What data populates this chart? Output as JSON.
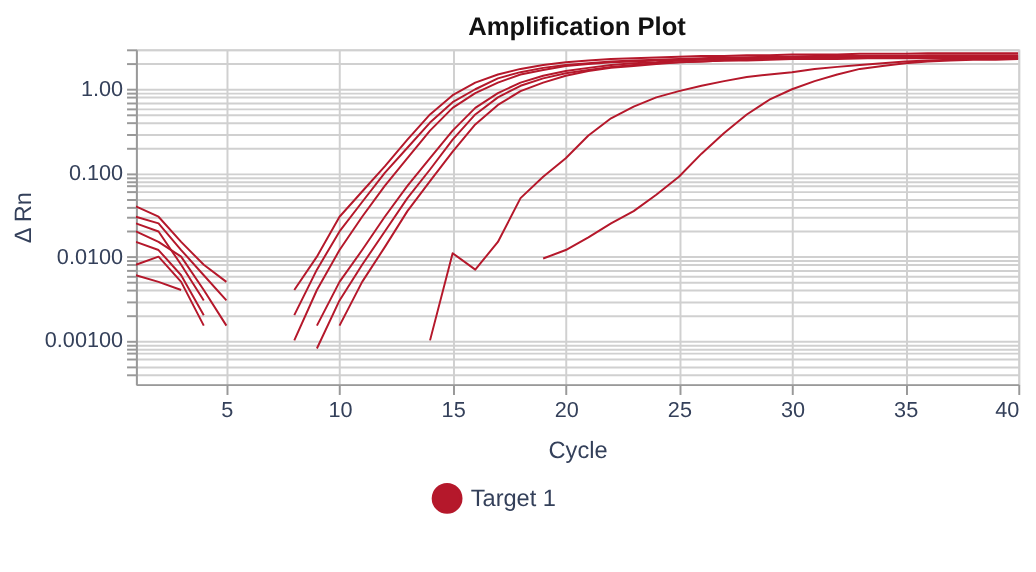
{
  "chart_data": {
    "type": "line",
    "title": "Amplification Plot",
    "xlabel": "Cycle",
    "ylabel": "Δ Rn",
    "log": "y",
    "grid": true,
    "legend": "bottom",
    "line_style": "solid",
    "xlim": [
      1,
      40
    ],
    "xticks": [
      5,
      10,
      15,
      20,
      25,
      30,
      35,
      40
    ],
    "ylim": [
      0.0003,
      3
    ],
    "yticks": [
      {
        "value": 0.0004,
        "label": null
      },
      {
        "value": 0.0005,
        "label": null
      },
      {
        "value": 0.0006,
        "label": null
      },
      {
        "value": 0.0007,
        "label": null
      },
      {
        "value": 0.0008,
        "label": null
      },
      {
        "value": 0.0009,
        "label": null
      },
      {
        "value": 0.001,
        "label": "0.00100"
      },
      {
        "value": 0.002,
        "label": null
      },
      {
        "value": 0.003,
        "label": null
      },
      {
        "value": 0.004,
        "label": null
      },
      {
        "value": 0.005,
        "label": null
      },
      {
        "value": 0.006,
        "label": null
      },
      {
        "value": 0.007,
        "label": null
      },
      {
        "value": 0.008,
        "label": null
      },
      {
        "value": 0.009,
        "label": null
      },
      {
        "value": 0.01,
        "label": "0.0100"
      },
      {
        "value": 0.02,
        "label": null
      },
      {
        "value": 0.03,
        "label": null
      },
      {
        "value": 0.04,
        "label": null
      },
      {
        "value": 0.05,
        "label": null
      },
      {
        "value": 0.06,
        "label": null
      },
      {
        "value": 0.07,
        "label": null
      },
      {
        "value": 0.08,
        "label": null
      },
      {
        "value": 0.09,
        "label": null
      },
      {
        "value": 0.1,
        "label": "0.100"
      },
      {
        "value": 0.2,
        "label": null
      },
      {
        "value": 0.3,
        "label": null
      },
      {
        "value": 0.4,
        "label": null
      },
      {
        "value": 0.5,
        "label": null
      },
      {
        "value": 0.6,
        "label": null
      },
      {
        "value": 0.7,
        "label": null
      },
      {
        "value": 0.8,
        "label": null
      },
      {
        "value": 0.9,
        "label": null
      },
      {
        "value": 1,
        "label": "1.00"
      },
      {
        "value": 2,
        "label": null
      },
      {
        "value": 3,
        "label": null
      }
    ],
    "series": [
      {
        "name": "Target 1",
        "color": "#b5182b",
        "x": [
          8,
          9,
          10,
          11,
          12,
          13,
          14,
          15,
          16,
          17,
          18,
          19,
          20,
          21,
          22,
          23,
          24,
          25,
          26,
          27,
          28,
          29,
          30,
          31,
          32,
          33,
          34,
          35,
          36,
          37,
          38,
          39,
          40
        ],
        "values": [
          0.004,
          0.01,
          0.03,
          0.06,
          0.12,
          0.25,
          0.5,
          0.85,
          1.2,
          1.5,
          1.75,
          1.95,
          2.1,
          2.2,
          2.3,
          2.35,
          2.4,
          2.45,
          2.5,
          2.5,
          2.55,
          2.55,
          2.6,
          2.6,
          2.6,
          2.65,
          2.65,
          2.65,
          2.7,
          2.7,
          2.7,
          2.7,
          2.7
        ]
      },
      {
        "color": "#b5182b",
        "x": [
          8,
          9,
          10,
          11,
          12,
          13,
          14,
          15,
          16,
          17,
          18,
          19,
          20,
          21,
          22,
          23,
          24,
          25,
          26,
          27,
          28,
          29,
          30,
          31,
          32,
          33,
          34,
          35,
          36,
          37,
          38,
          39,
          40
        ],
        "values": [
          0.002,
          0.007,
          0.02,
          0.045,
          0.1,
          0.2,
          0.4,
          0.7,
          1.0,
          1.35,
          1.6,
          1.8,
          1.95,
          2.05,
          2.15,
          2.2,
          2.25,
          2.3,
          2.35,
          2.4,
          2.4,
          2.45,
          2.45,
          2.5,
          2.5,
          2.5,
          2.5,
          2.5,
          2.55,
          2.55,
          2.55,
          2.55,
          2.55
        ]
      },
      {
        "color": "#b5182b",
        "x": [
          8,
          9,
          10,
          11,
          12,
          13,
          14,
          15,
          16,
          17,
          18,
          19,
          20,
          21,
          22,
          23,
          24,
          25,
          26,
          27,
          28,
          29,
          30,
          31,
          32,
          33,
          34,
          35,
          36,
          37,
          38,
          39,
          40
        ],
        "values": [
          0.001,
          0.004,
          0.012,
          0.03,
          0.07,
          0.15,
          0.32,
          0.6,
          0.9,
          1.2,
          1.5,
          1.7,
          1.9,
          2.0,
          2.1,
          2.15,
          2.2,
          2.25,
          2.3,
          2.35,
          2.4,
          2.4,
          2.45,
          2.45,
          2.5,
          2.5,
          2.5,
          2.5,
          2.5,
          2.5,
          2.5,
          2.5,
          2.5
        ]
      },
      {
        "color": "#b5182b",
        "x": [
          9,
          10,
          11,
          12,
          13,
          14,
          15,
          16,
          17,
          18,
          19,
          20,
          21,
          22,
          23,
          24,
          25,
          26,
          27,
          28,
          29,
          30,
          31,
          32,
          33,
          34,
          35,
          36,
          37,
          38,
          39,
          40
        ],
        "values": [
          0.0015,
          0.005,
          0.012,
          0.03,
          0.07,
          0.15,
          0.32,
          0.6,
          0.9,
          1.2,
          1.45,
          1.65,
          1.8,
          1.95,
          2.05,
          2.1,
          2.2,
          2.25,
          2.3,
          2.3,
          2.35,
          2.35,
          2.4,
          2.4,
          2.4,
          2.45,
          2.45,
          2.45,
          2.45,
          2.45,
          2.45,
          2.45
        ]
      },
      {
        "color": "#b5182b",
        "x": [
          9,
          10,
          11,
          12,
          13,
          14,
          15,
          16,
          17,
          18,
          19,
          20,
          21,
          22,
          23,
          24,
          25,
          26,
          27,
          28,
          29,
          30,
          31,
          32,
          33,
          34,
          35,
          36,
          37,
          38,
          39,
          40
        ],
        "values": [
          0.0008,
          0.003,
          0.008,
          0.02,
          0.05,
          0.11,
          0.25,
          0.5,
          0.8,
          1.1,
          1.35,
          1.55,
          1.7,
          1.85,
          1.95,
          2.05,
          2.1,
          2.15,
          2.2,
          2.25,
          2.3,
          2.3,
          2.35,
          2.35,
          2.35,
          2.4,
          2.4,
          2.4,
          2.4,
          2.4,
          2.4,
          2.4
        ]
      },
      {
        "color": "#b5182b",
        "x": [
          10,
          11,
          12,
          13,
          14,
          15,
          16,
          17,
          18,
          19,
          20,
          21,
          22,
          23,
          24,
          25,
          26,
          27,
          28,
          29,
          30,
          31,
          32,
          33,
          34,
          35,
          36,
          37,
          38,
          39,
          40
        ],
        "values": [
          0.0015,
          0.005,
          0.013,
          0.035,
          0.08,
          0.18,
          0.38,
          0.65,
          0.95,
          1.2,
          1.45,
          1.65,
          1.8,
          1.9,
          2.0,
          2.1,
          2.15,
          2.2,
          2.2,
          2.25,
          2.3,
          2.3,
          2.3,
          2.35,
          2.35,
          2.35,
          2.35,
          2.35,
          2.35,
          2.35,
          2.35
        ]
      },
      {
        "color": "#b5182b",
        "x": [
          14,
          15,
          16,
          17,
          18,
          19,
          20,
          21,
          22,
          23,
          24,
          25,
          26,
          27,
          28,
          29,
          30,
          31,
          32,
          33,
          34,
          35,
          36,
          37,
          38,
          39,
          40
        ],
        "values": [
          0.001,
          0.011,
          0.007,
          0.015,
          0.05,
          0.09,
          0.15,
          0.28,
          0.45,
          0.62,
          0.8,
          0.95,
          1.1,
          1.25,
          1.4,
          1.5,
          1.6,
          1.75,
          1.85,
          1.95,
          2.05,
          2.15,
          2.2,
          2.25,
          2.3,
          2.3,
          2.3
        ]
      },
      {
        "color": "#b5182b",
        "x": [
          19,
          20,
          21,
          22,
          23,
          24,
          25,
          26,
          27,
          28,
          29,
          30,
          31,
          32,
          33,
          34,
          35,
          36,
          37,
          38,
          39,
          40
        ],
        "values": [
          0.0095,
          0.012,
          0.017,
          0.025,
          0.035,
          0.055,
          0.09,
          0.17,
          0.3,
          0.5,
          0.75,
          1.0,
          1.25,
          1.5,
          1.75,
          1.9,
          2.05,
          2.15,
          2.2,
          2.25,
          2.25,
          2.3
        ]
      },
      {
        "color": "#b5182b",
        "x": [
          1,
          2,
          3,
          4,
          5
        ],
        "values": [
          0.04,
          0.03,
          0.015,
          0.008,
          0.005
        ]
      },
      {
        "color": "#b5182b",
        "x": [
          1,
          2,
          3,
          4,
          5
        ],
        "values": [
          0.03,
          0.025,
          0.012,
          0.006,
          0.003
        ]
      },
      {
        "color": "#b5182b",
        "x": [
          1,
          2,
          3,
          4,
          5
        ],
        "values": [
          0.02,
          0.015,
          0.01,
          0.004,
          0.0015
        ]
      },
      {
        "color": "#b5182b",
        "x": [
          1,
          2,
          3,
          4
        ],
        "values": [
          0.025,
          0.02,
          0.008,
          0.003
        ]
      },
      {
        "color": "#b5182b",
        "x": [
          1,
          2,
          3,
          4
        ],
        "values": [
          0.015,
          0.012,
          0.006,
          0.002
        ]
      },
      {
        "color": "#b5182b",
        "x": [
          1,
          2,
          3,
          4
        ],
        "values": [
          0.008,
          0.01,
          0.005,
          0.0015
        ]
      },
      {
        "color": "#b5182b",
        "x": [
          1,
          2,
          3
        ],
        "values": [
          0.006,
          0.005,
          0.004
        ]
      }
    ]
  }
}
